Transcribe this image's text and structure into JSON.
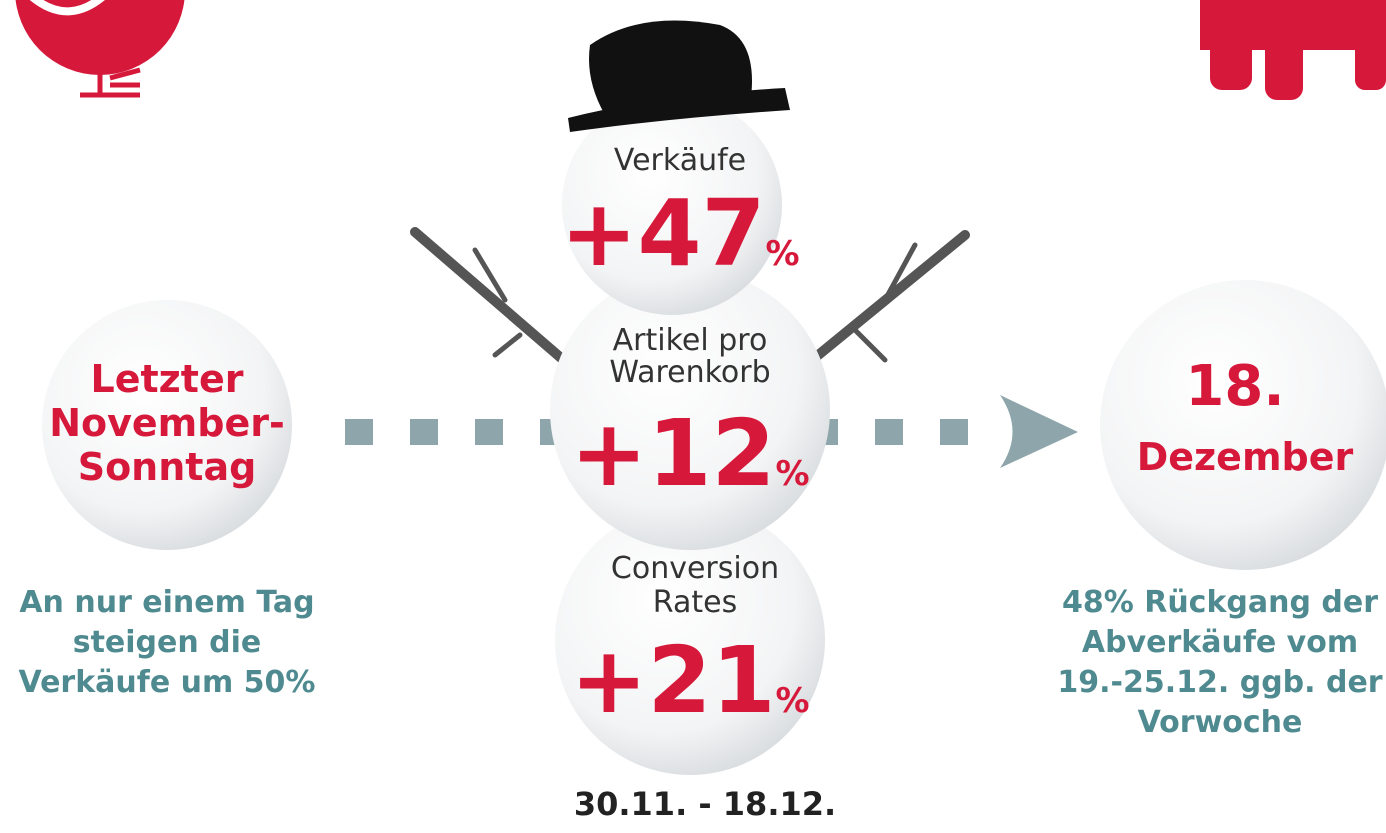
{
  "left": {
    "label_lines": [
      "Letzter",
      "November-",
      "Sonntag"
    ],
    "caption_lines": [
      "An nur einem Tag",
      "steigen die",
      "Verkäufe um 50%"
    ]
  },
  "snowman": {
    "balls": [
      {
        "label_lines": [
          "Verkäufe"
        ],
        "value": "+47",
        "unit": "%"
      },
      {
        "label_lines": [
          "Artikel pro",
          "Warenkorb"
        ],
        "value": "+12",
        "unit": "%"
      },
      {
        "label_lines": [
          "Conversion",
          "Rates"
        ],
        "value": "+21",
        "unit": "%"
      }
    ],
    "period": "30.11. - 18.12."
  },
  "right": {
    "label_lines": [
      "18.",
      "Dezember"
    ],
    "caption_lines": [
      "48% Rückgang der",
      "Abverkäufe vom",
      "19.-25.12. ggb. der",
      "Vorwoche"
    ]
  }
}
